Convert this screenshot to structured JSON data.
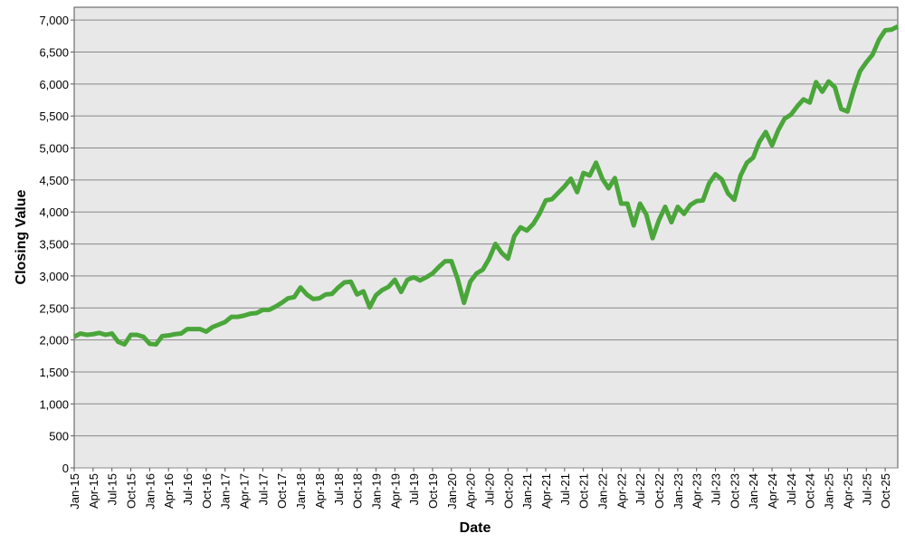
{
  "chart_data": {
    "type": "line",
    "x_label": "Date",
    "y_label": "Closing Value",
    "color": "#4aa63a",
    "grid": true,
    "ylim": [
      0,
      7200
    ],
    "yticks": [
      0,
      500,
      {
        "value": 1000,
        "label": "1,000"
      },
      {
        "value": 1500,
        "label": "1,500"
      },
      {
        "value": 2000,
        "label": "2,000"
      },
      {
        "value": 2500,
        "label": "2,500"
      },
      {
        "value": 3000,
        "label": "3,000"
      },
      {
        "value": 3500,
        "label": "3,500"
      },
      {
        "value": 4000,
        "label": "4,000"
      },
      {
        "value": 4500,
        "label": "4,500"
      },
      {
        "value": 5000,
        "label": "5,000"
      },
      {
        "value": 5500,
        "label": "5,500"
      },
      {
        "value": 6000,
        "label": "6,000"
      },
      {
        "value": 6500,
        "label": "6,500"
      },
      {
        "value": 7000,
        "label": "7,000"
      }
    ],
    "categories": [
      "Jan-15",
      null,
      null,
      "Apr-15",
      null,
      null,
      "Jul-15",
      null,
      null,
      "Oct-15",
      null,
      null,
      "Jan-16",
      null,
      null,
      "Apr-16",
      null,
      null,
      "Jul-16",
      null,
      null,
      "Oct-16",
      null,
      null,
      "Jan-17",
      null,
      null,
      "Apr-17",
      null,
      null,
      "Jul-17",
      null,
      null,
      "Oct-17",
      null,
      null,
      "Jan-18",
      null,
      null,
      "Apr-18",
      null,
      null,
      "Jul-18",
      null,
      null,
      "Oct-18",
      null,
      null,
      "Jan-19",
      null,
      null,
      "Apr-19",
      null,
      null,
      "Jul-19",
      null,
      null,
      "Oct-19",
      null,
      null,
      "Jan-20",
      null,
      null,
      "Apr-20",
      null,
      null,
      "Jul-20",
      null,
      null,
      "Oct-20",
      null,
      null,
      "Jan-21",
      null,
      null,
      "Apr-21",
      null,
      null,
      "Jul-21",
      null,
      null,
      "Oct-21",
      null,
      null,
      "Jan-22",
      null,
      null,
      "Apr-22",
      null,
      null,
      "Jul-22",
      null,
      null,
      "Oct-22",
      null,
      null,
      "Jan-23",
      null,
      null,
      "Apr-23",
      null,
      null,
      "Jul-23",
      null,
      null,
      "Oct-23",
      null,
      null,
      "Jan-24",
      null,
      null,
      "Apr-24",
      null,
      null,
      "Jul-24",
      null,
      null,
      "Oct-24",
      null,
      null,
      "Jan-25",
      null,
      null,
      "Apr-25",
      null,
      null,
      "Jul-25",
      null,
      null,
      "Oct-25",
      null,
      null
    ],
    "values": [
      2050,
      2100,
      2080,
      2090,
      2110,
      2080,
      2100,
      1970,
      1930,
      2080,
      2080,
      2050,
      1940,
      1930,
      2060,
      2070,
      2090,
      2100,
      2170,
      2170,
      2170,
      2130,
      2200,
      2240,
      2280,
      2360,
      2360,
      2380,
      2410,
      2420,
      2470,
      2470,
      2520,
      2580,
      2650,
      2670,
      2820,
      2710,
      2640,
      2650,
      2710,
      2720,
      2820,
      2900,
      2910,
      2710,
      2760,
      2510,
      2700,
      2780,
      2830,
      2940,
      2750,
      2940,
      2980,
      2930,
      2980,
      3040,
      3140,
      3230,
      3230,
      2950,
      2580,
      2910,
      3040,
      3100,
      3270,
      3500,
      3360,
      3270,
      3620,
      3760,
      3710,
      3810,
      3970,
      4180,
      4200,
      4300,
      4400,
      4520,
      4310,
      4610,
      4570,
      4770,
      4520,
      4370,
      4530,
      4130,
      4130,
      3790,
      4130,
      3960,
      3590,
      3870,
      4080,
      3840,
      4080,
      3970,
      4110,
      4170,
      4180,
      4450,
      4590,
      4510,
      4290,
      4190,
      4570,
      4770,
      4850,
      5100,
      5250,
      5040,
      5280,
      5460,
      5520,
      5650,
      5760,
      5710,
      6030,
      5880,
      6040,
      5950,
      5610,
      5570,
      5910,
      6200,
      6340,
      6460,
      6690,
      6840,
      6850,
      6900
    ]
  }
}
